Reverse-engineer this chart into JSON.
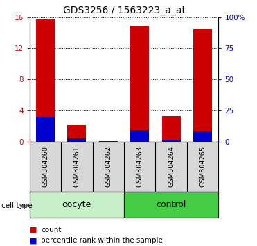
{
  "title": "GDS3256 / 1563223_a_at",
  "samples": [
    "GSM304260",
    "GSM304261",
    "GSM304262",
    "GSM304263",
    "GSM304264",
    "GSM304265"
  ],
  "count_values": [
    15.8,
    2.1,
    0.02,
    14.9,
    3.3,
    14.5
  ],
  "percentile_values": [
    20.0,
    2.5,
    0.3,
    9.0,
    1.5,
    8.0
  ],
  "left_ylim": [
    0,
    16
  ],
  "right_ylim": [
    0,
    100
  ],
  "left_yticks": [
    0,
    4,
    8,
    12,
    16
  ],
  "right_yticks": [
    0,
    25,
    50,
    75,
    100
  ],
  "right_yticklabels": [
    "0",
    "25",
    "50",
    "75",
    "100%"
  ],
  "groups": [
    {
      "label": "oocyte",
      "indices": [
        0,
        1,
        2
      ],
      "color": "#c8f0c8"
    },
    {
      "label": "control",
      "indices": [
        3,
        4,
        5
      ],
      "color": "#44cc44"
    }
  ],
  "group_label": "cell type",
  "bar_width": 0.6,
  "count_color": "#cc0000",
  "percentile_color": "#0000cc",
  "bg_color": "#d8d8d8",
  "title_fontsize": 10,
  "tick_fontsize": 7.5,
  "label_fontsize": 7,
  "legend_fontsize": 7.5,
  "group_fontsize": 9
}
